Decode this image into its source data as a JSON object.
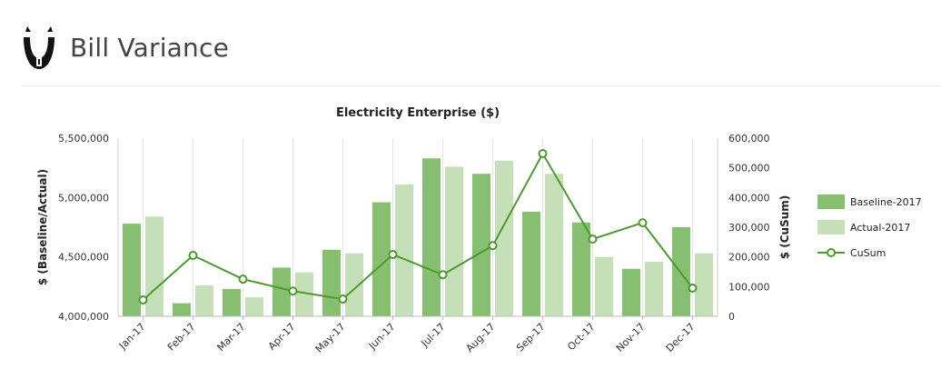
{
  "page": {
    "title": "Bill Variance",
    "logo_icon": "bull-head-logo-icon"
  },
  "chart_data": {
    "type": "bar",
    "title": "Electricity Enterprise ($)",
    "categories": [
      "Jan-17",
      "Feb-17",
      "Mar-17",
      "Apr-17",
      "May-17",
      "Jun-17",
      "Jul-17",
      "Aug-17",
      "Sep-17",
      "Oct-17",
      "Nov-17",
      "Dec-17"
    ],
    "series": [
      {
        "name": "Baseline-2017",
        "type": "bar",
        "axis": "left",
        "color": "#86bf6f",
        "values": [
          4780000,
          4110000,
          4230000,
          4410000,
          4560000,
          4960000,
          5330000,
          5200000,
          4880000,
          4790000,
          4400000,
          4750000
        ]
      },
      {
        "name": "Actual-2017",
        "type": "bar",
        "axis": "left",
        "color": "#c5e0b8",
        "values": [
          4840000,
          4260000,
          4160000,
          4370000,
          4530000,
          5110000,
          5260000,
          5310000,
          5200000,
          4500000,
          4460000,
          4530000
        ]
      },
      {
        "name": "CuSum",
        "type": "line",
        "axis": "right",
        "color": "#4e9a2e",
        "values": [
          55000,
          205000,
          125000,
          85000,
          58000,
          208000,
          140000,
          238000,
          548000,
          260000,
          315000,
          95000
        ]
      }
    ],
    "y_left": {
      "label": "$ (Baseline/Actual)",
      "min": 4000000,
      "max": 5500000,
      "ticks": [
        4000000,
        4500000,
        5000000,
        5500000
      ],
      "tick_labels": [
        "4,000,000",
        "4,500,000",
        "5,000,000",
        "5,500,000"
      ]
    },
    "y_right": {
      "label": "$ (CuSum)",
      "min": 0,
      "max": 600000,
      "ticks": [
        0,
        100000,
        200000,
        300000,
        400000,
        500000,
        600000
      ],
      "tick_labels": [
        "0",
        "100,000",
        "200,000",
        "300,000",
        "400,000",
        "500,000",
        "600,000"
      ]
    },
    "grid": "vertical",
    "legend_position": "right"
  }
}
